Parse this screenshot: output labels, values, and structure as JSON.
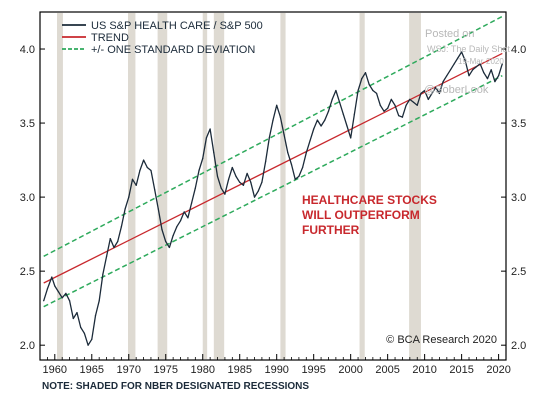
{
  "chart_data": {
    "type": "line",
    "x_ticks": [
      1960,
      1965,
      1970,
      1975,
      1980,
      1985,
      1990,
      1995,
      2000,
      2005,
      2010,
      2015,
      2020
    ],
    "y_ticks": [
      2.0,
      2.5,
      3.0,
      3.5,
      4.0
    ],
    "y_tick_labels": [
      "2.0",
      "2.5",
      "3.0",
      "3.5",
      "4.0"
    ],
    "xlim": [
      1958,
      2021
    ],
    "ylim": [
      1.9,
      4.25
    ],
    "grid": false,
    "legend_position": "top-left",
    "legend": [
      {
        "label": "US S&P HEALTH CARE / S&P 500",
        "style": "solid",
        "color": "#1c2b3a"
      },
      {
        "label": "TREND",
        "style": "solid",
        "color": "#c8282d"
      },
      {
        "label": "+/- ONE STANDARD DEVIATION",
        "style": "dashed",
        "color": "#2eaa5c"
      }
    ],
    "recessions": [
      [
        1960.3,
        1961.1
      ],
      [
        1969.9,
        1970.9
      ],
      [
        1973.9,
        1975.2
      ],
      [
        1980.0,
        1980.6
      ],
      [
        1981.5,
        1982.9
      ],
      [
        1990.5,
        1991.2
      ],
      [
        2001.2,
        2001.9
      ],
      [
        2007.9,
        2009.5
      ]
    ],
    "trend": {
      "start": [
        1958.5,
        2.42
      ],
      "end": [
        2020.5,
        3.97
      ]
    },
    "std_upper": {
      "start": [
        1958.5,
        2.6
      ],
      "end": [
        2020.5,
        4.22
      ]
    },
    "std_lower": {
      "start": [
        1958.5,
        2.26
      ],
      "end": [
        2020.5,
        3.82
      ]
    },
    "series": [
      {
        "name": "US S&P HEALTH CARE / S&P 500",
        "x": [
          1958.5,
          1959.0,
          1959.6,
          1960.0,
          1960.5,
          1961.0,
          1961.5,
          1962.0,
          1962.5,
          1963.0,
          1963.5,
          1964.0,
          1964.5,
          1965.0,
          1965.5,
          1966.0,
          1966.5,
          1967.0,
          1967.5,
          1968.0,
          1968.5,
          1969.0,
          1969.5,
          1970.0,
          1970.5,
          1971.0,
          1971.5,
          1972.0,
          1972.5,
          1973.0,
          1973.5,
          1974.0,
          1974.5,
          1975.0,
          1975.5,
          1976.0,
          1976.5,
          1977.0,
          1977.5,
          1978.0,
          1978.5,
          1979.0,
          1979.5,
          1980.0,
          1980.5,
          1981.0,
          1981.5,
          1982.0,
          1982.5,
          1983.0,
          1983.5,
          1984.0,
          1984.5,
          1985.0,
          1985.5,
          1986.0,
          1986.5,
          1987.0,
          1987.5,
          1988.0,
          1988.5,
          1989.0,
          1989.5,
          1990.0,
          1990.5,
          1991.0,
          1991.5,
          1992.0,
          1992.5,
          1993.0,
          1993.5,
          1994.0,
          1994.5,
          1995.0,
          1995.5,
          1996.0,
          1996.5,
          1997.0,
          1997.5,
          1998.0,
          1998.5,
          1999.0,
          1999.5,
          2000.0,
          2000.5,
          2001.0,
          2001.5,
          2002.0,
          2002.5,
          2003.0,
          2003.5,
          2004.0,
          2004.5,
          2005.0,
          2005.5,
          2006.0,
          2006.5,
          2007.0,
          2007.5,
          2008.0,
          2008.5,
          2009.0,
          2009.5,
          2010.0,
          2010.5,
          2011.0,
          2011.5,
          2012.0,
          2012.5,
          2013.0,
          2013.5,
          2014.0,
          2014.5,
          2015.0,
          2015.5,
          2016.0,
          2016.5,
          2017.0,
          2017.5,
          2018.0,
          2018.5,
          2019.0,
          2019.5,
          2020.0,
          2020.5
        ],
        "y": [
          2.3,
          2.38,
          2.46,
          2.4,
          2.36,
          2.32,
          2.35,
          2.3,
          2.18,
          2.22,
          2.12,
          2.08,
          2.0,
          2.04,
          2.2,
          2.3,
          2.48,
          2.6,
          2.72,
          2.66,
          2.7,
          2.8,
          2.92,
          3.0,
          3.12,
          3.08,
          3.18,
          3.25,
          3.2,
          3.18,
          3.05,
          2.92,
          2.78,
          2.7,
          2.66,
          2.74,
          2.8,
          2.84,
          2.9,
          2.86,
          2.96,
          3.06,
          3.18,
          3.26,
          3.4,
          3.46,
          3.3,
          3.14,
          3.06,
          3.02,
          3.12,
          3.2,
          3.14,
          3.1,
          3.08,
          3.16,
          3.1,
          3.0,
          3.04,
          3.1,
          3.24,
          3.4,
          3.52,
          3.62,
          3.54,
          3.42,
          3.3,
          3.22,
          3.12,
          3.14,
          3.2,
          3.3,
          3.38,
          3.46,
          3.52,
          3.48,
          3.52,
          3.58,
          3.66,
          3.72,
          3.64,
          3.56,
          3.48,
          3.4,
          3.56,
          3.72,
          3.8,
          3.84,
          3.76,
          3.72,
          3.7,
          3.62,
          3.58,
          3.6,
          3.66,
          3.62,
          3.55,
          3.54,
          3.62,
          3.66,
          3.64,
          3.62,
          3.7,
          3.72,
          3.66,
          3.7,
          3.74,
          3.7,
          3.78,
          3.82,
          3.86,
          3.9,
          3.94,
          3.98,
          3.92,
          3.82,
          3.86,
          3.88,
          3.9,
          3.84,
          3.8,
          3.86,
          3.78,
          3.82,
          3.9
        ]
      }
    ],
    "annotation": "HEALTHCARE STOCKS\nWILL OUTPERFORM\nFURTHER",
    "credit": "© BCA Research 2020",
    "footnote": "NOTE: SHADED FOR NBER DESIGNATED RECESSIONS",
    "watermark_lines": [
      "Posted on",
      "WSJ: The Daily Shot",
      "19-Mar-2020",
      "@SoberLook"
    ]
  },
  "colors": {
    "series_line": "#1c2b3a",
    "trend": "#c8282d",
    "std_band": "#2eaa5c",
    "recession_shade": "#dedad2",
    "annotation": "#c8282d",
    "axis": "#000000"
  }
}
